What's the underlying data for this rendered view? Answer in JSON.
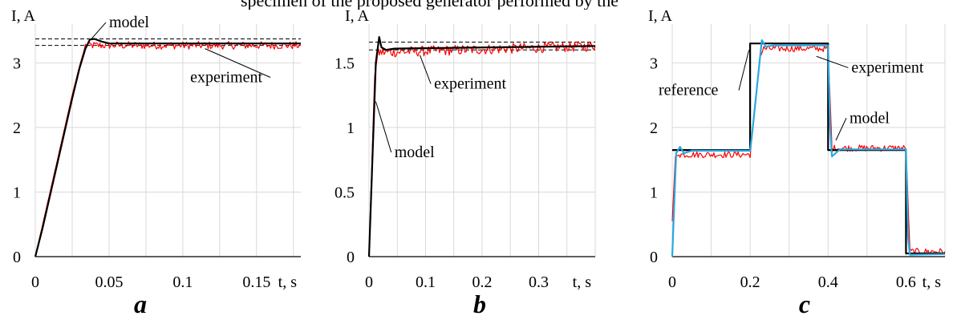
{
  "header_fragment": "specimen of the proposed generator performed by the prototype",
  "chart_data": [
    {
      "id": "a",
      "type": "line",
      "panel_letter": "a",
      "ylabel": "I, A",
      "xlabel": "t, s",
      "xlim": [
        0,
        0.18
      ],
      "ylim": [
        0,
        3.6
      ],
      "xticks": [
        0,
        0.05,
        0.1,
        0.15
      ],
      "xtick_labels": [
        "0",
        "0.05",
        "0.1",
        "0.15"
      ],
      "yticks": [
        0,
        1,
        2,
        3
      ],
      "ytick_labels": [
        "0",
        "1",
        "2",
        "3"
      ],
      "grid": true,
      "dashed_levels": [
        3.27,
        3.37
      ],
      "series": [
        {
          "name": "model",
          "color": "#000000",
          "x": [
            0,
            0.005,
            0.01,
            0.015,
            0.02,
            0.025,
            0.03,
            0.034,
            0.037,
            0.04,
            0.045,
            0.05,
            0.06,
            0.18
          ],
          "y": [
            0,
            0.45,
            0.95,
            1.45,
            1.95,
            2.45,
            2.92,
            3.22,
            3.36,
            3.37,
            3.33,
            3.3,
            3.3,
            3.3
          ]
        },
        {
          "name": "experiment",
          "color": "#ff0000",
          "x": [
            0,
            0.005,
            0.01,
            0.015,
            0.02,
            0.025,
            0.03,
            0.034,
            0.18
          ],
          "y": [
            0,
            0.5,
            1.0,
            1.5,
            2.0,
            2.5,
            2.95,
            3.27,
            3.27
          ],
          "noise": 0.06,
          "noise_from": 0.034
        }
      ],
      "annotations": [
        {
          "text": "model",
          "x": 0.05,
          "y": 3.55,
          "anchor_x": 0.038,
          "anchor_y": 3.37
        },
        {
          "text": "experiment",
          "x": 0.105,
          "y": 2.7,
          "anchor_x": 0.115,
          "anchor_y": 3.22
        }
      ]
    },
    {
      "id": "b",
      "type": "line",
      "panel_letter": "b",
      "ylabel": "I, A",
      "xlabel": "t, s",
      "xlim": [
        0,
        0.4
      ],
      "ylim": [
        0,
        1.8
      ],
      "xticks": [
        0,
        0.1,
        0.2,
        0.3
      ],
      "xtick_labels": [
        "0",
        "0.1",
        "0.2",
        "0.3"
      ],
      "yticks": [
        0,
        0.5,
        1,
        1.5
      ],
      "ytick_labels": [
        "0",
        "0.5",
        "1",
        "1.5"
      ],
      "grid": true,
      "dashed_levels": [
        1.6,
        1.66
      ],
      "series": [
        {
          "name": "model",
          "color": "#000000",
          "x": [
            0,
            0.012,
            0.018,
            0.022,
            0.03,
            0.045,
            0.4
          ],
          "y": [
            0,
            1.5,
            1.7,
            1.62,
            1.6,
            1.61,
            1.63
          ]
        },
        {
          "name": "experiment",
          "color": "#ff0000",
          "x": [
            0,
            0.01,
            0.016,
            0.4
          ],
          "y": [
            0,
            1.4,
            1.58,
            1.63
          ],
          "noise": 0.04,
          "noise_from": 0.016
        }
      ],
      "annotations": [
        {
          "text": "experiment",
          "x": 0.115,
          "y": 1.3,
          "anchor_x": 0.09,
          "anchor_y": 1.56
        },
        {
          "text": "model",
          "x": 0.045,
          "y": 0.77,
          "anchor_x": 0.012,
          "anchor_y": 1.2
        }
      ]
    },
    {
      "id": "c",
      "type": "line",
      "panel_letter": "c",
      "ylabel": "I, A",
      "xlabel": "t, s",
      "xlim": [
        0,
        0.7
      ],
      "ylim": [
        0,
        3.6
      ],
      "xticks": [
        0,
        0.2,
        0.4,
        0.6
      ],
      "xtick_labels": [
        "0",
        "0.2",
        "0.4",
        "0.6"
      ],
      "yticks": [
        0,
        1,
        2,
        3
      ],
      "ytick_labels": [
        "0",
        "1",
        "2",
        "3"
      ],
      "grid": true,
      "series": [
        {
          "name": "reference",
          "color": "#000000",
          "x": [
            0,
            0.2,
            0.2,
            0.4,
            0.4,
            0.6,
            0.6,
            0.7
          ],
          "y": [
            1.65,
            1.65,
            3.3,
            3.3,
            1.65,
            1.65,
            0.05,
            0.05
          ]
        },
        {
          "name": "model",
          "color": "#29a8e0",
          "x": [
            0,
            0.01,
            0.02,
            0.03,
            0.05,
            0.2,
            0.205,
            0.23,
            0.24,
            0.26,
            0.4,
            0.405,
            0.41,
            0.43,
            0.6,
            0.605,
            0.61,
            0.7
          ],
          "y": [
            0,
            1.6,
            1.7,
            1.6,
            1.64,
            1.64,
            1.9,
            3.35,
            3.25,
            3.27,
            3.27,
            2.0,
            1.55,
            1.66,
            1.66,
            0.3,
            0.03,
            0.04
          ]
        },
        {
          "name": "experiment",
          "color": "#ff0000",
          "x": [
            0,
            0.008,
            0.02,
            0.2,
            0.225,
            0.235,
            0.4,
            0.41,
            0.6,
            0.61,
            0.7
          ],
          "y": [
            0.55,
            1.55,
            1.58,
            1.58,
            3.1,
            3.22,
            3.22,
            1.68,
            1.68,
            0.08,
            0.08
          ],
          "noise": 0.05,
          "noise_from": 0.02
        }
      ],
      "annotations": [
        {
          "text": "experiment",
          "x": 0.46,
          "y": 2.85,
          "anchor_x": 0.37,
          "anchor_y": 3.1
        },
        {
          "text": "reference",
          "x": -0.035,
          "y": 2.5,
          "anchor_x": 0.197,
          "anchor_y": 3.2
        },
        {
          "text": "model",
          "x": 0.455,
          "y": 2.07,
          "anchor_x": 0.42,
          "anchor_y": 1.8
        }
      ]
    }
  ]
}
